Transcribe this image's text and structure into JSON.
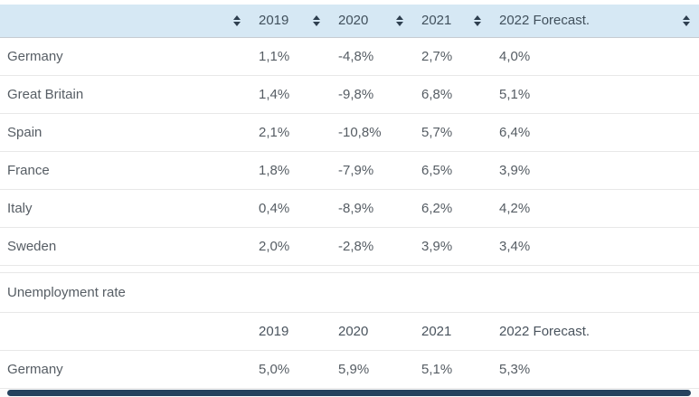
{
  "chart_data": [
    {
      "type": "table",
      "title": "",
      "columns": [
        "",
        "2019",
        "2020",
        "2021",
        "2022 Forecast.",
        ""
      ],
      "rows": [
        [
          "Germany",
          "1,1%",
          "-4,8%",
          "2,7%",
          "4,0%"
        ],
        [
          "Great Britain",
          "1,4%",
          "-9,8%",
          "6,8%",
          "5,1%"
        ],
        [
          "Spain",
          "2,1%",
          "-10,8%",
          "5,7%",
          "6,4%"
        ],
        [
          "France",
          "1,8%",
          "-7,9%",
          "6,5%",
          "3,9%"
        ],
        [
          "Italy",
          "0,4%",
          "-8,9%",
          "6,2%",
          "4,2%"
        ],
        [
          "Sweden",
          "2,0%",
          "-2,8%",
          "3,9%",
          "3,4%"
        ]
      ]
    },
    {
      "type": "table",
      "title": "Unemployment rate",
      "columns": [
        "",
        "2019",
        "2020",
        "2021",
        "2022 Forecast."
      ],
      "rows": [
        [
          "Germany",
          "5,0%",
          "5,9%",
          "5,1%",
          "5,3%"
        ]
      ]
    }
  ],
  "colors": {
    "header_bg": "#d6e8f4",
    "header_text": "#41505c",
    "body_text": "#565d64",
    "row_border": "#e8e8e8",
    "header_border": "#c6ccd2",
    "sort_icon": "#2e3f4f",
    "scrollbar_thumb": "#25425e"
  }
}
